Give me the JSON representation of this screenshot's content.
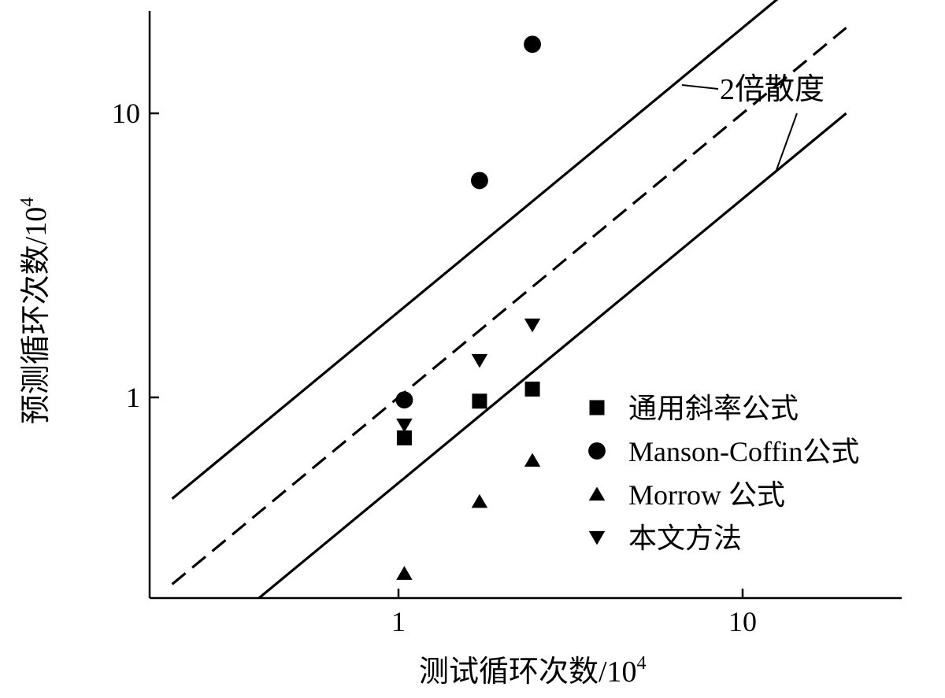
{
  "chart_data": {
    "type": "scatter",
    "xscale": "log",
    "yscale": "log",
    "xlim": [
      0.22,
      20
    ],
    "ylim": [
      0.17,
      23
    ],
    "xlabel": "测试循环次数/10",
    "xlabel_sup": "4",
    "ylabel": "预测循环次数/10",
    "ylabel_sup": "4",
    "xticks": [
      {
        "value": 1,
        "label": "1"
      },
      {
        "value": 10,
        "label": "10"
      }
    ],
    "yticks": [
      {
        "value": 1,
        "label": "1"
      },
      {
        "value": 10,
        "label": "10"
      }
    ],
    "annotation": "2倍散度",
    "reference_lines": [
      {
        "kind": "upper-bound",
        "factor": 2,
        "style": "solid"
      },
      {
        "kind": "identity",
        "factor": 1,
        "style": "dashed"
      },
      {
        "kind": "lower-bound",
        "factor": 0.5,
        "style": "solid"
      }
    ],
    "legend_position": "lower-right",
    "series": [
      {
        "name": "通用斜率公式",
        "marker": "square",
        "x": [
          1.04,
          1.72,
          2.45
        ],
        "y": [
          0.72,
          0.97,
          1.07
        ]
      },
      {
        "name": "Manson-Coffin公式",
        "marker": "circle",
        "x": [
          1.04,
          1.72,
          2.45
        ],
        "y": [
          0.98,
          5.8,
          17.5
        ]
      },
      {
        "name": "Morrow 公式",
        "marker": "triangle-up",
        "x": [
          1.04,
          1.72,
          2.45
        ],
        "y": [
          0.24,
          0.43,
          0.6
        ]
      },
      {
        "name": "本文方法",
        "marker": "triangle-down",
        "x": [
          1.04,
          1.72,
          2.45
        ],
        "y": [
          0.8,
          1.35,
          1.8
        ]
      }
    ]
  }
}
